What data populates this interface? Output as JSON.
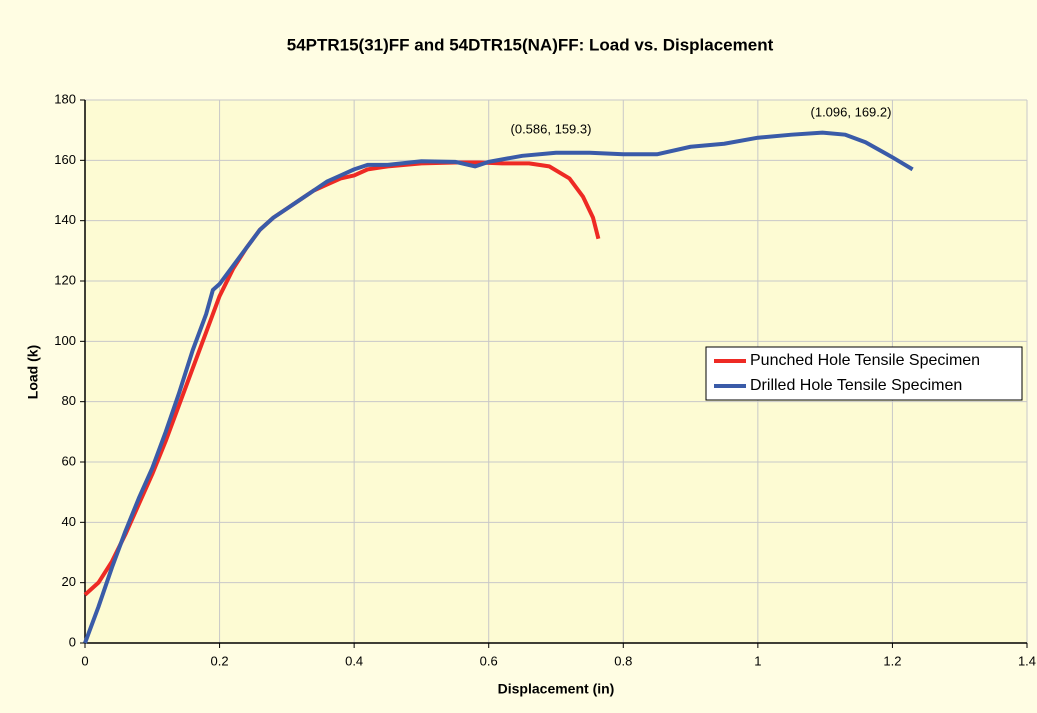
{
  "chart_data": {
    "type": "line",
    "title": "54PTR15(31)FF and 54DTR15(NA)FF: Load vs. Displacement",
    "x_label": "Displacement (in)",
    "y_label": "Load (k)",
    "xlim": [
      0,
      1.4
    ],
    "ylim": [
      0,
      180
    ],
    "xticks": [
      0,
      0.2,
      0.4,
      0.6,
      0.8,
      1,
      1.2,
      1.4
    ],
    "yticks": [
      0,
      20,
      40,
      60,
      80,
      100,
      120,
      140,
      160,
      180
    ],
    "grid": true,
    "legend": "right",
    "annotations": [
      "(0.586, 159.3)",
      "(1.096, 169.2)"
    ],
    "series": [
      {
        "name": "Punched Hole Tensile Specimen",
        "color": "#ee2a24",
        "x": [
          0,
          0.02,
          0.04,
          0.06,
          0.08,
          0.1,
          0.12,
          0.14,
          0.16,
          0.18,
          0.2,
          0.22,
          0.24,
          0.26,
          0.28,
          0.3,
          0.32,
          0.34,
          0.36,
          0.38,
          0.4,
          0.42,
          0.45,
          0.5,
          0.55,
          0.586,
          0.62,
          0.66,
          0.69,
          0.72,
          0.74,
          0.755,
          0.763
        ],
        "values": [
          16,
          20,
          27,
          36,
          46,
          56,
          67,
          79,
          91,
          103,
          115,
          124,
          131,
          137,
          141,
          144,
          147,
          150,
          152,
          154,
          155,
          157,
          158,
          159,
          159.3,
          159.3,
          159,
          159,
          158,
          154,
          148,
          141,
          134
        ]
      },
      {
        "name": "Drilled Hole Tensile Specimen",
        "color": "#3a5ba8",
        "x": [
          0,
          0.02,
          0.04,
          0.06,
          0.08,
          0.1,
          0.12,
          0.14,
          0.16,
          0.18,
          0.19,
          0.2,
          0.22,
          0.24,
          0.26,
          0.28,
          0.3,
          0.32,
          0.34,
          0.36,
          0.38,
          0.4,
          0.42,
          0.45,
          0.5,
          0.55,
          0.58,
          0.6,
          0.65,
          0.7,
          0.75,
          0.8,
          0.85,
          0.9,
          0.95,
          1.0,
          1.05,
          1.096,
          1.13,
          1.16,
          1.2,
          1.23
        ],
        "values": [
          0,
          12,
          25,
          37,
          48,
          58,
          70,
          83,
          97,
          109,
          117,
          119,
          125,
          131,
          137,
          141,
          144,
          147,
          150,
          153,
          155,
          157,
          158.5,
          158.5,
          159.7,
          159.5,
          158,
          159.5,
          161.5,
          162.5,
          162.5,
          162,
          162,
          164.5,
          165.5,
          167.5,
          168.5,
          169.2,
          168.5,
          166,
          161,
          157
        ]
      }
    ]
  }
}
